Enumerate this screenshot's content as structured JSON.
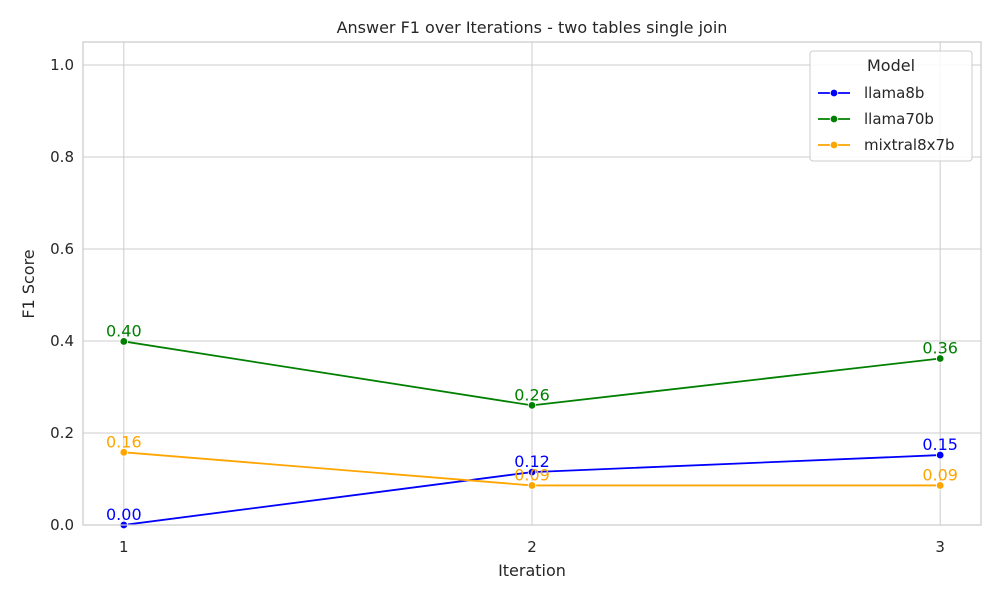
{
  "chart_data": {
    "type": "line",
    "title": "Answer F1 over Iterations - two tables single join",
    "xlabel": "Iteration",
    "ylabel": "F1 Score",
    "x": [
      1,
      2,
      3
    ],
    "x_tick_labels": [
      "1",
      "2",
      "3"
    ],
    "xlim": [
      0.9,
      3.1
    ],
    "ylim": [
      0,
      1.05
    ],
    "y_ticks": [
      0,
      0.2,
      0.4,
      0.6,
      0.8,
      1.0
    ],
    "y_tick_labels": [
      "0.0",
      "0.2",
      "0.4",
      "0.6",
      "0.8",
      "1.0"
    ],
    "grid": true,
    "legend": {
      "title": "Model",
      "placement": "top-right"
    },
    "series": [
      {
        "name": "llama8b",
        "color": "#0000ff",
        "values": [
          0.0,
          0.115,
          0.152
        ],
        "labels": [
          "0.00",
          "0.12",
          "0.15"
        ]
      },
      {
        "name": "llama70b",
        "color": "#008000",
        "values": [
          0.399,
          0.26,
          0.362
        ],
        "labels": [
          "0.40",
          "0.26",
          "0.36"
        ]
      },
      {
        "name": "mixtral8x7b",
        "color": "#ffa500",
        "values": [
          0.158,
          0.086,
          0.086
        ],
        "labels": [
          "0.16",
          "0.09",
          "0.09"
        ]
      }
    ]
  }
}
